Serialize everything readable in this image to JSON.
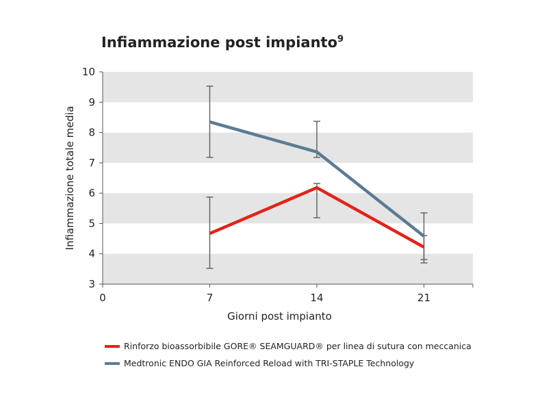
{
  "chart_data": {
    "type": "line",
    "title": "Infiammazione post impianto",
    "title_superscript": "9",
    "xlabel": "Giorni post impianto",
    "ylabel": "Infiammazione totale media",
    "xlim": [
      0,
      24.2
    ],
    "ylim": [
      3,
      10
    ],
    "x_ticks": [
      "0",
      "7",
      "14",
      "21"
    ],
    "y_ticks": [
      "3",
      "4",
      "5",
      "6",
      "7",
      "8",
      "9",
      "10"
    ],
    "grid": "alternating horizontal bands",
    "legend_position": "bottom",
    "x": [
      7,
      14,
      21
    ],
    "series": [
      {
        "name": "Rinforzo bioassorbibile GORE® SEAMGUARD® per linea di sutura con meccanica",
        "color": "#e2231a",
        "values": [
          4.67,
          6.18,
          4.22
        ],
        "error_low": [
          3.52,
          5.19,
          3.7
        ],
        "error_high": [
          5.87,
          6.32,
          4.6
        ]
      },
      {
        "name": "Medtronic ENDO GIA Reinforced Reload with TRI-STAPLE Technology",
        "color": "#5b7b94",
        "values": [
          8.35,
          7.36,
          4.58
        ],
        "error_low": [
          7.18,
          7.18,
          3.81
        ],
        "error_high": [
          9.53,
          8.37,
          5.35
        ]
      }
    ]
  }
}
